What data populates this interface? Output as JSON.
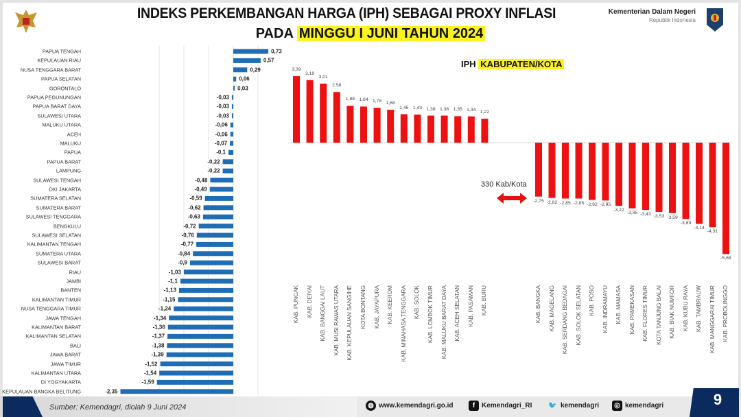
{
  "header": {
    "title_line1": "INDEKS PERKEMBANGAN HARGA (IPH) SEBAGAI PROXY INFLASI",
    "title_line2_prefix": "PADA",
    "title_line2_highlight": "MINGGU I JUNI TAHUN 2024",
    "ministry": "Kementerian Dalam Negeri",
    "ministry_sub": "Republik Indonesia"
  },
  "note": {
    "count_label": "330 Kab/Kota"
  },
  "footer": {
    "source": "Sumber: Kemendagri, diolah 9 Juni 2024",
    "website": "www.kemendagri.go.id",
    "facebook": "Kemendagri_RI",
    "twitter": "kemendagri",
    "instagram": "kemendagri",
    "page": "9"
  },
  "colors": {
    "province_bar": "#1f6db5",
    "regency_bar": "#ee1111",
    "highlight": "#fbf21e",
    "footer_blue": "#0b2a5e"
  },
  "chart_data": [
    {
      "type": "bar",
      "orientation": "horizontal",
      "title": "",
      "categories": [
        "PAPUA TENGAH",
        "KEPULAUAN RIAU",
        "NUSA TENGGARA BARAT",
        "PAPUA SELATAN",
        "GORONTALO",
        "PAPUA PEGUNUNGAN",
        "PAPUA BARAT DAYA",
        "SULAWESI UTARA",
        "MALUKU UTARA",
        "ACEH",
        "MALUKU",
        "PAPUA",
        "PAPUA BARAT",
        "LAMPUNG",
        "SULAWESI TENGAH",
        "DKI JAKARTA",
        "SUMATERA SELATAN",
        "SUMATERA BARAT",
        "SULAWESI TENGGARA",
        "BENGKULU",
        "SULAWESI SELATAN",
        "KALIMANTAN TENGAH",
        "SUMATERA UTARA",
        "SULAWESI BARAT",
        "RIAU",
        "JAMBI",
        "BANTEN",
        "KALIMANTAN TIMUR",
        "NUSA TENGGARA TIMUR",
        "JAWA TENGAH",
        "KALIMANTAN BARAT",
        "KALIMANTAN SELATAN",
        "BALI",
        "JAWA BARAT",
        "JAWA TIMUR",
        "KALIMANTAN UTARA",
        "DI YOGYAKARTA",
        "KEPULAUAN BANGKA BELITUNG"
      ],
      "values": [
        0.73,
        0.57,
        0.29,
        0.06,
        0.03,
        -0.03,
        -0.03,
        -0.03,
        -0.06,
        -0.06,
        -0.07,
        -0.1,
        -0.22,
        -0.22,
        -0.48,
        -0.49,
        -0.59,
        -0.62,
        -0.63,
        -0.72,
        -0.76,
        -0.77,
        -0.84,
        -0.9,
        -1.03,
        -1.1,
        -1.13,
        -1.15,
        -1.24,
        -1.34,
        -1.36,
        -1.37,
        -1.38,
        -1.39,
        -1.52,
        -1.54,
        -1.59,
        -2.35
      ],
      "value_labels": [
        "0,73",
        "0,57",
        "0,29",
        "0,06",
        "0,03",
        "-0,03",
        "-0,03",
        "-0,03",
        "-0,06",
        "-0,06",
        "-0,07",
        "-0,1",
        "-0,22",
        "-0,22",
        "-0,48",
        "-0,49",
        "-0,59",
        "-0,62",
        "-0,63",
        "-0,72",
        "-0,76",
        "-0,77",
        "-0,84",
        "-0,9",
        "-1,03",
        "-1,1",
        "-1,13",
        "-1,15",
        "-1,24",
        "-1,34",
        "-1,36",
        "-1,37",
        "-1,38",
        "-1,39",
        "-1,52",
        "-1,54",
        "-1,59",
        "-2,35"
      ],
      "xlim": [
        -2.5,
        0.8
      ],
      "grid": true,
      "legend": "none"
    },
    {
      "type": "bar",
      "title": "IPH KABUPATEN/KOTA",
      "title_prefix": "IPH",
      "title_highlight": "KABUPATEN/KOTA",
      "categories": [
        "KAB. PUNCAK",
        "KAB. DEIYAI",
        "KAB. BANGGAI LAUT",
        "KAB. MUSI RAWAS UTARA",
        "KAB. KEPULAUAN SANGIHE",
        "KOTA BONTANG",
        "KAB. JAYAPURA",
        "KAB. KEEROM",
        "KAB. MINAHASA TENGGARA",
        "KAB. SOLOK",
        "KAB. LOMBOK TIMUR",
        "KAB. MALUKU BARAT DAYA",
        "KAB. ACEH SELATAN",
        "KAB. PASAMAN",
        "KAB. BURU",
        "KAB. BANGKA",
        "KAB. MAGELANG",
        "KAB. SERDANG BEDAGAI",
        "KAB. SOLOK SELATAN",
        "KAB. POSO",
        "KAB. INDRAMAYU",
        "KAB. MAMASA",
        "KAB. PAMEKASAN",
        "KAB. FLORES TIMUR",
        "KOTA TANJUNG BALAI",
        "KAB. BIAK NUMFOR",
        "KAB. KUBU RAYA",
        "KAB. TAMBRAUW",
        "KAB. MANGGARAI TIMUR",
        "KAB. PROBOLINGGO"
      ],
      "values": [
        3.39,
        3.19,
        3.01,
        2.58,
        1.88,
        1.84,
        1.78,
        1.68,
        1.45,
        1.43,
        1.38,
        1.38,
        1.35,
        1.34,
        1.22,
        -2.75,
        -2.82,
        -2.85,
        -2.85,
        -2.92,
        -2.95,
        -3.22,
        -3.35,
        -3.43,
        -3.53,
        -3.59,
        -3.89,
        -4.14,
        -4.31,
        -5.68
      ],
      "value_labels": [
        "3,39",
        "3,19",
        "3,01",
        "2,58",
        "1,88",
        "1,84",
        "1,78",
        "1,68",
        "1,45",
        "1,43",
        "1,38",
        "1,38",
        "1,35",
        "1,34",
        "1,22",
        "-2,75",
        "-2,82",
        "-2,85",
        "-2,85",
        "-2,92",
        "-2,95",
        "-3,22",
        "-3,35",
        "-3,43",
        "-3,53",
        "-3,59",
        "-3,89",
        "-4,14",
        "-4,31",
        "-5,68"
      ],
      "ylim": [
        -6,
        3.5
      ],
      "grid": false,
      "legend": "none"
    }
  ]
}
